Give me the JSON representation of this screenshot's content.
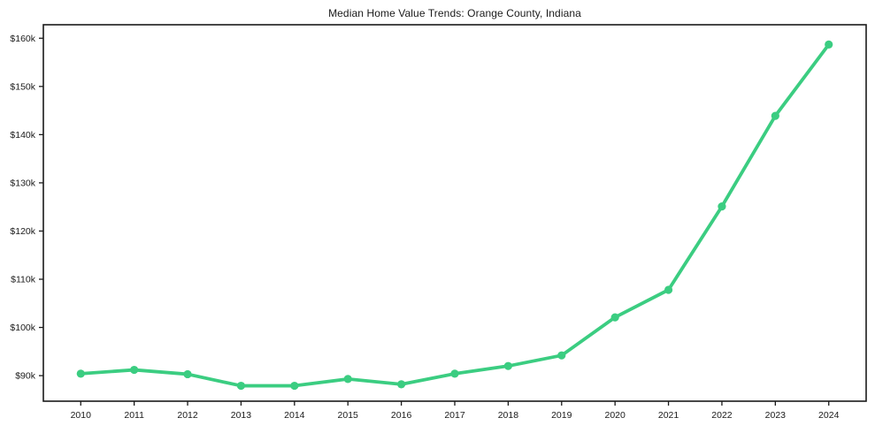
{
  "chart_data": {
    "type": "line",
    "title": "Median Home Value Trends: Orange County, Indiana",
    "x": [
      2010,
      2011,
      2012,
      2013,
      2014,
      2015,
      2016,
      2017,
      2018,
      2019,
      2020,
      2021,
      2022,
      2023,
      2024
    ],
    "series": [
      {
        "name": "Median Home Value",
        "values": [
          90400,
          91200,
          90300,
          87900,
          87900,
          89300,
          88200,
          90400,
          92000,
          94200,
          102100,
          107800,
          125100,
          143900,
          158700
        ]
      }
    ],
    "xlabel": "",
    "ylabel": "",
    "xlim": [
      2009.3,
      2024.7
    ],
    "ylim": [
      84700,
      162800
    ],
    "xticks": [
      {
        "value": 2010,
        "label": "2010"
      },
      {
        "value": 2011,
        "label": "2011"
      },
      {
        "value": 2012,
        "label": "2012"
      },
      {
        "value": 2013,
        "label": "2013"
      },
      {
        "value": 2014,
        "label": "2014"
      },
      {
        "value": 2015,
        "label": "2015"
      },
      {
        "value": 2016,
        "label": "2016"
      },
      {
        "value": 2017,
        "label": "2017"
      },
      {
        "value": 2018,
        "label": "2018"
      },
      {
        "value": 2019,
        "label": "2019"
      },
      {
        "value": 2020,
        "label": "2020"
      },
      {
        "value": 2021,
        "label": "2021"
      },
      {
        "value": 2022,
        "label": "2022"
      },
      {
        "value": 2023,
        "label": "2023"
      },
      {
        "value": 2024,
        "label": "2024"
      }
    ],
    "yticks": [
      {
        "value": 90000,
        "label": "$90k"
      },
      {
        "value": 100000,
        "label": "$100k"
      },
      {
        "value": 110000,
        "label": "$110k"
      },
      {
        "value": 120000,
        "label": "$120k"
      },
      {
        "value": 130000,
        "label": "$130k"
      },
      {
        "value": 140000,
        "label": "$140k"
      },
      {
        "value": 150000,
        "label": "$150k"
      },
      {
        "value": 160000,
        "label": "$160k"
      }
    ],
    "grid": false,
    "legend_position": "none",
    "line_color": "#3bcd81",
    "axis_color": "#1a1a1a",
    "tick_label_color": "#1a1a1a",
    "marker": "circle"
  }
}
